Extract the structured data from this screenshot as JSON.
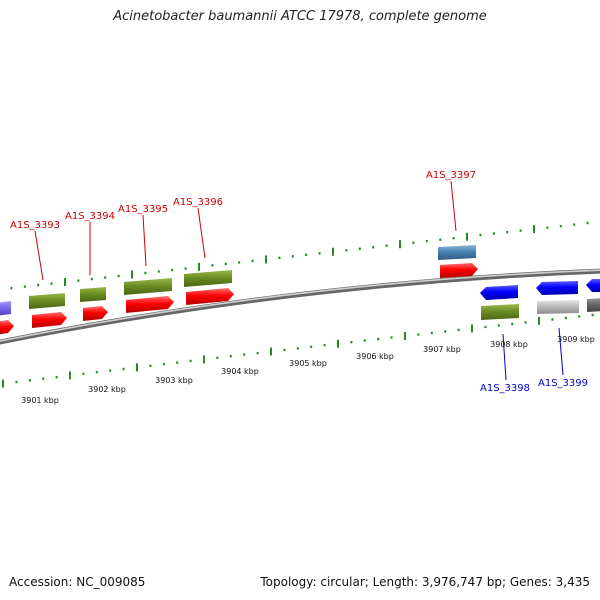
{
  "title": "Acinetobacter baumannii ATCC 17978, complete genome",
  "footer": {
    "accession": "Accession: NC_009085",
    "topology": "Topology: circular; Length: 3,976,747 bp; Genes: 3,435"
  },
  "colors": {
    "forward_label": "#cc0000",
    "reverse_label": "#0000cc",
    "cds_red": "#ff0000",
    "gene_green": "#6b8e23",
    "gene_blue": "#0000ff",
    "gene_steelblue": "#4682b4",
    "gene_gray": "#bbbbbb",
    "gene_darkgray": "#666666",
    "gene_slate": "#7b68ee",
    "tick": "#228b22",
    "backbone": "#888888"
  },
  "scale_labels": [
    "3901 kbp",
    "3902 kbp",
    "3903 kbp",
    "3904 kbp",
    "3905 kbp",
    "3906 kbp",
    "3907 kbp",
    "3908 kbp",
    "3909 kbp"
  ],
  "gene_labels": [
    {
      "id": "A1S_3393",
      "strand": "forward"
    },
    {
      "id": "A1S_3394",
      "strand": "forward"
    },
    {
      "id": "A1S_3395",
      "strand": "forward"
    },
    {
      "id": "A1S_3396",
      "strand": "forward"
    },
    {
      "id": "A1S_3397",
      "strand": "forward"
    },
    {
      "id": "A1S_3398",
      "strand": "reverse"
    },
    {
      "id": "A1S_3399",
      "strand": "reverse"
    }
  ]
}
